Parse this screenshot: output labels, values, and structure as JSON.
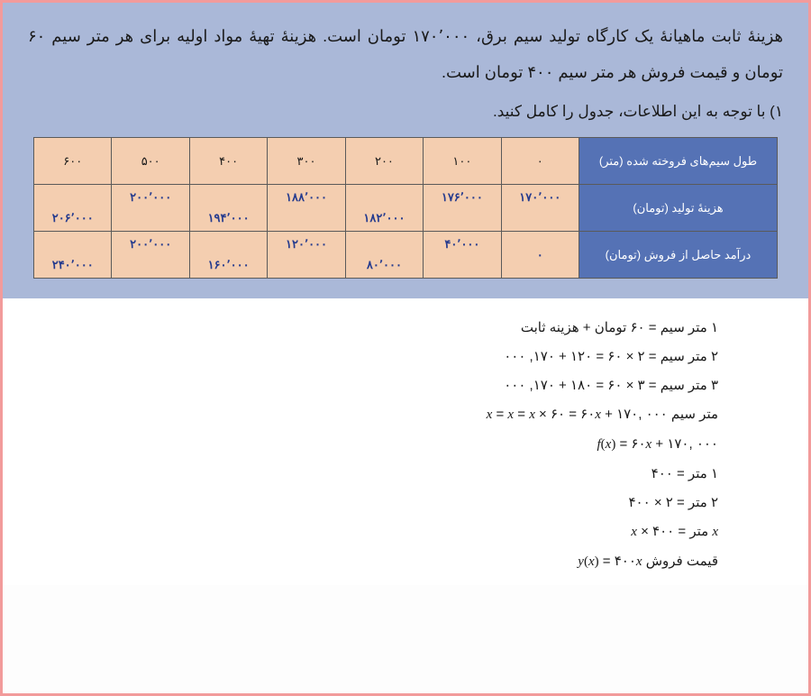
{
  "problem": {
    "paragraph": "هزینهٔ ثابت ماهیانهٔ یک کارگاه تولید سیم برق، ۱۷۰٬۰۰۰ تومان است. هزینهٔ تهیهٔ مواد اولیه برای هر متر سیم ۶۰ تومان و قیمت فروش هر متر سیم ۴۰۰ تومان است.",
    "instruction": "۱) با توجه به این اطلاعات، جدول را کامل کنید."
  },
  "table": {
    "row_headers": [
      "طول سیم‌های فروخته شده (متر)",
      "هزینهٔ تولید (تومان)",
      "درآمد حاصل از فروش (تومان)"
    ],
    "lengths": [
      "۰",
      "۱۰۰",
      "۲۰۰",
      "۳۰۰",
      "۴۰۰",
      "۵۰۰",
      "۶۰۰"
    ],
    "costs": [
      "۱۷۰٬۰۰۰",
      "۱۷۶٬۰۰۰",
      "۱۸۲٬۰۰۰",
      "۱۸۸٬۰۰۰",
      "۱۹۴٬۰۰۰",
      "۲۰۰٬۰۰۰",
      "۲۰۶٬۰۰۰"
    ],
    "income": [
      "۰",
      "۴۰٬۰۰۰",
      "۸۰٬۰۰۰",
      "۱۲۰٬۰۰۰",
      "۱۶۰٬۰۰۰",
      "۲۰۰٬۰۰۰",
      "۲۴۰٬۰۰۰"
    ],
    "colors": {
      "header_bg": "#5572b5",
      "header_text": "#ffffff",
      "cell_bg": "#f4ceb0",
      "value_text": "#253b8e",
      "border": "#5a5a5a"
    }
  },
  "solutions": {
    "l1_a": "۱ متر سیم",
    "l1_b": " = ۶۰ تومان + هزینه ثابت",
    "l2_a": "۲ متر سیم",
    "l2_b": " = ۲ × ۶۰ = ۱۲۰ + ۱۷۰, ۰۰۰",
    "l3_a": "۳ متر سیم",
    "l3_b": " = ۳ × ۶۰ = ۱۸۰ + ۱۷۰, ۰۰۰",
    "l4_a": "متر سیم ",
    "l4_c": " × ۶۰ = ۶۰",
    "l4_d": " + ۱۷۰, ۰۰۰",
    "l5_b": " = ۶۰",
    "l5_c": " + ۱۷۰, ۰۰۰",
    "l6": "۱ متر = ۴۰۰",
    "l7": "۲ متر = ۲ × ۴۰۰",
    "l8_a": " متر = ",
    "l8_b": " × ۴۰۰",
    "l9_a": "قیمت فروش ",
    "l9_c": " = ۴۰۰"
  },
  "math": {
    "x": "x",
    "f": "f",
    "y": "y",
    "eq": " = "
  }
}
